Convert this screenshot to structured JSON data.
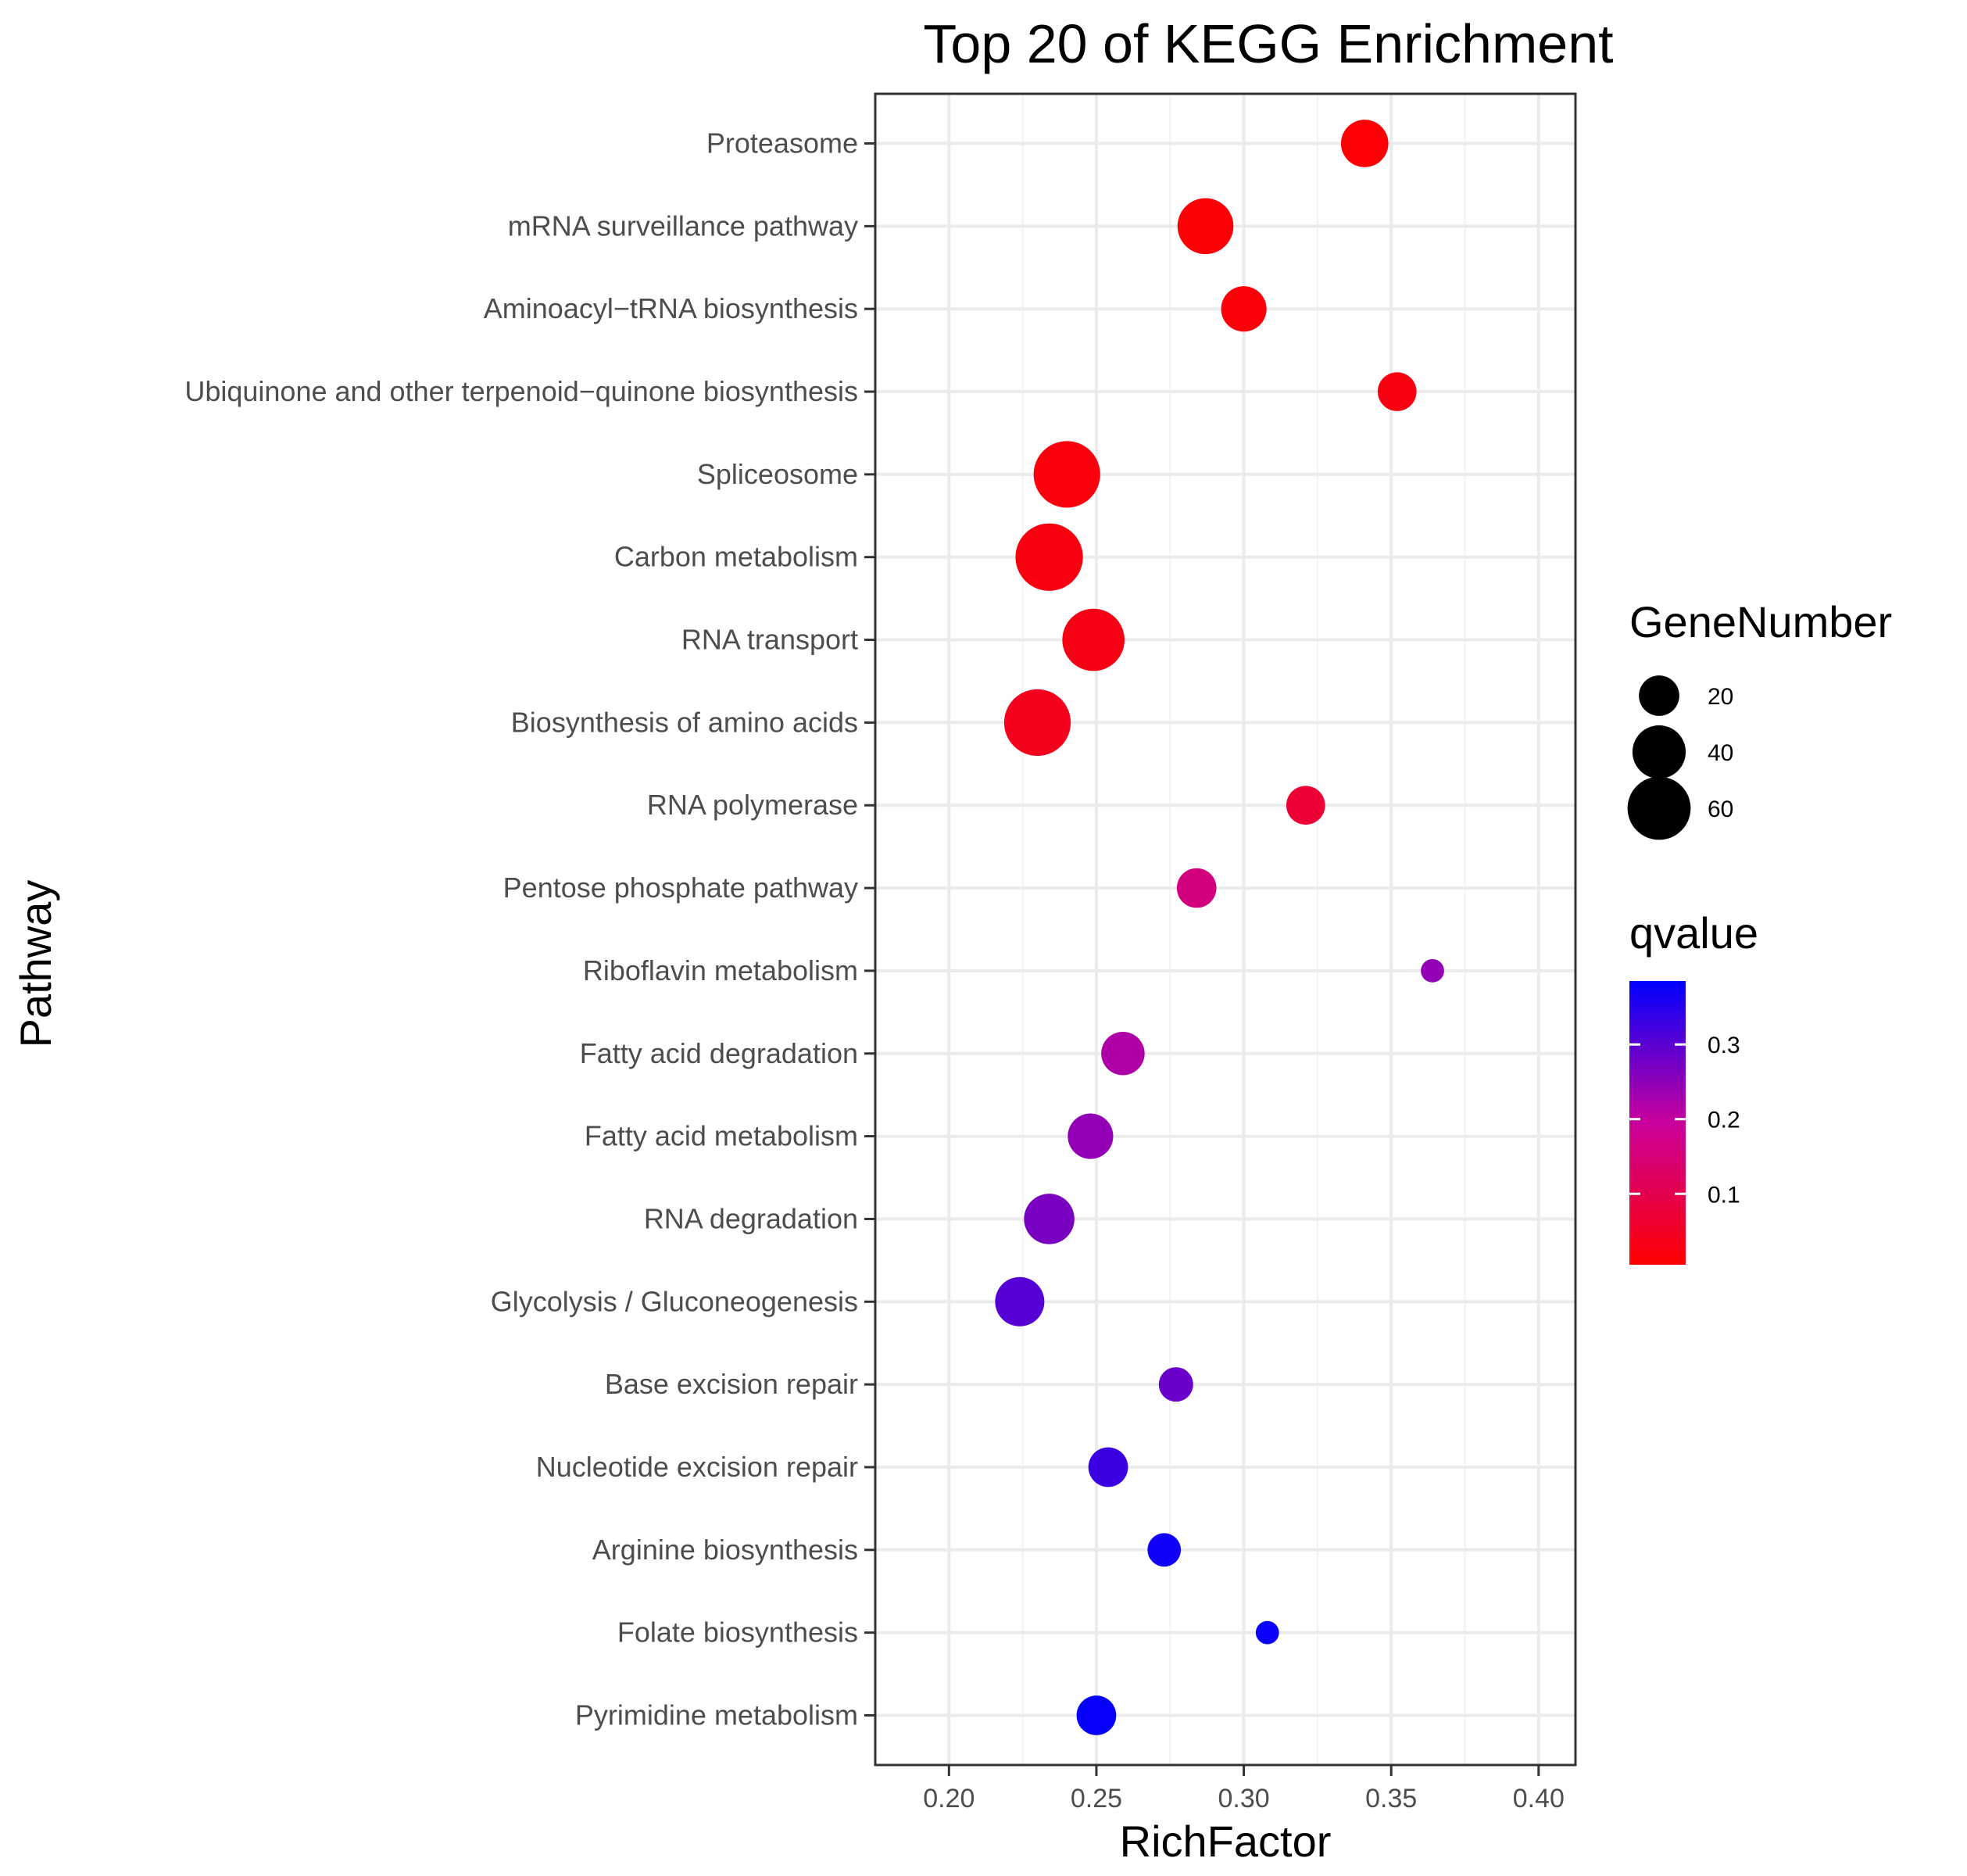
{
  "colors": {
    "qvalue_low": "#ff0000",
    "qvalue_mid": "#c9009b",
    "qvalue_high": "#0000ff",
    "panel_border": "#333333",
    "grid": "#ebebeb",
    "legend_point": "#000000"
  },
  "chart_data": {
    "type": "scatter",
    "title": "Top 20 of KEGG Enrichment",
    "xlabel": "RichFactor",
    "ylabel": "Pathway",
    "xlim": [
      0.175,
      0.4125
    ],
    "xticks": [
      0.2,
      0.25,
      0.3,
      0.35,
      0.4
    ],
    "xtick_labels": [
      "0.20",
      "0.25",
      "0.30",
      "0.35",
      "0.40"
    ],
    "grid": true,
    "categories": [
      "Proteasome",
      "mRNA surveillance pathway",
      "Aminoacyl−tRNA biosynthesis",
      "Ubiquinone and other terpenoid−quinone biosynthesis",
      "Spliceosome",
      "Carbon metabolism",
      "RNA transport",
      "Biosynthesis of amino acids",
      "RNA polymerase",
      "Pentose phosphate pathway",
      "Riboflavin metabolism",
      "Fatty acid degradation",
      "Fatty acid metabolism",
      "RNA degradation",
      "Glycolysis / Gluconeogenesis",
      "Base excision repair",
      "Nucleotide excision repair",
      "Arginine biosynthesis",
      "Folate biosynthesis",
      "Pyrimidine metabolism"
    ],
    "points": [
      {
        "pathway": "Proteasome",
        "rich_factor": 0.341,
        "gene_number": 30,
        "qvalue": 0.01
      },
      {
        "pathway": "mRNA surveillance pathway",
        "rich_factor": 0.287,
        "gene_number": 45,
        "qvalue": 0.012
      },
      {
        "pathway": "Aminoacyl−tRNA biosynthesis",
        "rich_factor": 0.3,
        "gene_number": 27,
        "qvalue": 0.015
      },
      {
        "pathway": "Ubiquinone and other terpenoid−quinone biosynthesis",
        "rich_factor": 0.352,
        "gene_number": 18,
        "qvalue": 0.025
      },
      {
        "pathway": "Spliceosome",
        "rich_factor": 0.24,
        "gene_number": 68,
        "qvalue": 0.02
      },
      {
        "pathway": "Carbon metabolism",
        "rich_factor": 0.234,
        "gene_number": 70,
        "qvalue": 0.025
      },
      {
        "pathway": "RNA transport",
        "rich_factor": 0.249,
        "gene_number": 58,
        "qvalue": 0.028
      },
      {
        "pathway": "Biosynthesis of amino acids",
        "rich_factor": 0.23,
        "gene_number": 68,
        "qvalue": 0.04
      },
      {
        "pathway": "RNA polymerase",
        "rich_factor": 0.321,
        "gene_number": 18,
        "qvalue": 0.07
      },
      {
        "pathway": "Pentose phosphate pathway",
        "rich_factor": 0.284,
        "gene_number": 19,
        "qvalue": 0.16
      },
      {
        "pathway": "Riboflavin metabolism",
        "rich_factor": 0.364,
        "gene_number": 4,
        "qvalue": 0.245
      },
      {
        "pathway": "Fatty acid degradation",
        "rich_factor": 0.259,
        "gene_number": 24,
        "qvalue": 0.22
      },
      {
        "pathway": "Fatty acid metabolism",
        "rich_factor": 0.248,
        "gene_number": 27,
        "qvalue": 0.245
      },
      {
        "pathway": "RNA degradation",
        "rich_factor": 0.234,
        "gene_number": 35,
        "qvalue": 0.27
      },
      {
        "pathway": "Glycolysis / Gluconeogenesis",
        "rich_factor": 0.224,
        "gene_number": 33,
        "qvalue": 0.305
      },
      {
        "pathway": "Base excision repair",
        "rich_factor": 0.277,
        "gene_number": 13,
        "qvalue": 0.285
      },
      {
        "pathway": "Nucleotide excision repair",
        "rich_factor": 0.254,
        "gene_number": 19,
        "qvalue": 0.33
      },
      {
        "pathway": "Arginine biosynthesis",
        "rich_factor": 0.273,
        "gene_number": 12,
        "qvalue": 0.37
      },
      {
        "pathway": "Folate biosynthesis",
        "rich_factor": 0.308,
        "gene_number": 4,
        "qvalue": 0.375
      },
      {
        "pathway": "Pyrimidine metabolism",
        "rich_factor": 0.25,
        "gene_number": 19,
        "qvalue": 0.38
      }
    ],
    "legend": {
      "placement": "right",
      "size_title": "GeneNumber",
      "size_breaks": [
        20,
        40,
        60
      ],
      "size_labels": [
        "20",
        "40",
        "60"
      ],
      "color_title": "qvalue",
      "color_range": [
        0.005,
        0.385
      ],
      "color_breaks": [
        0.1,
        0.2,
        0.3
      ],
      "color_labels": [
        "0.1",
        "0.2",
        "0.3"
      ]
    }
  }
}
